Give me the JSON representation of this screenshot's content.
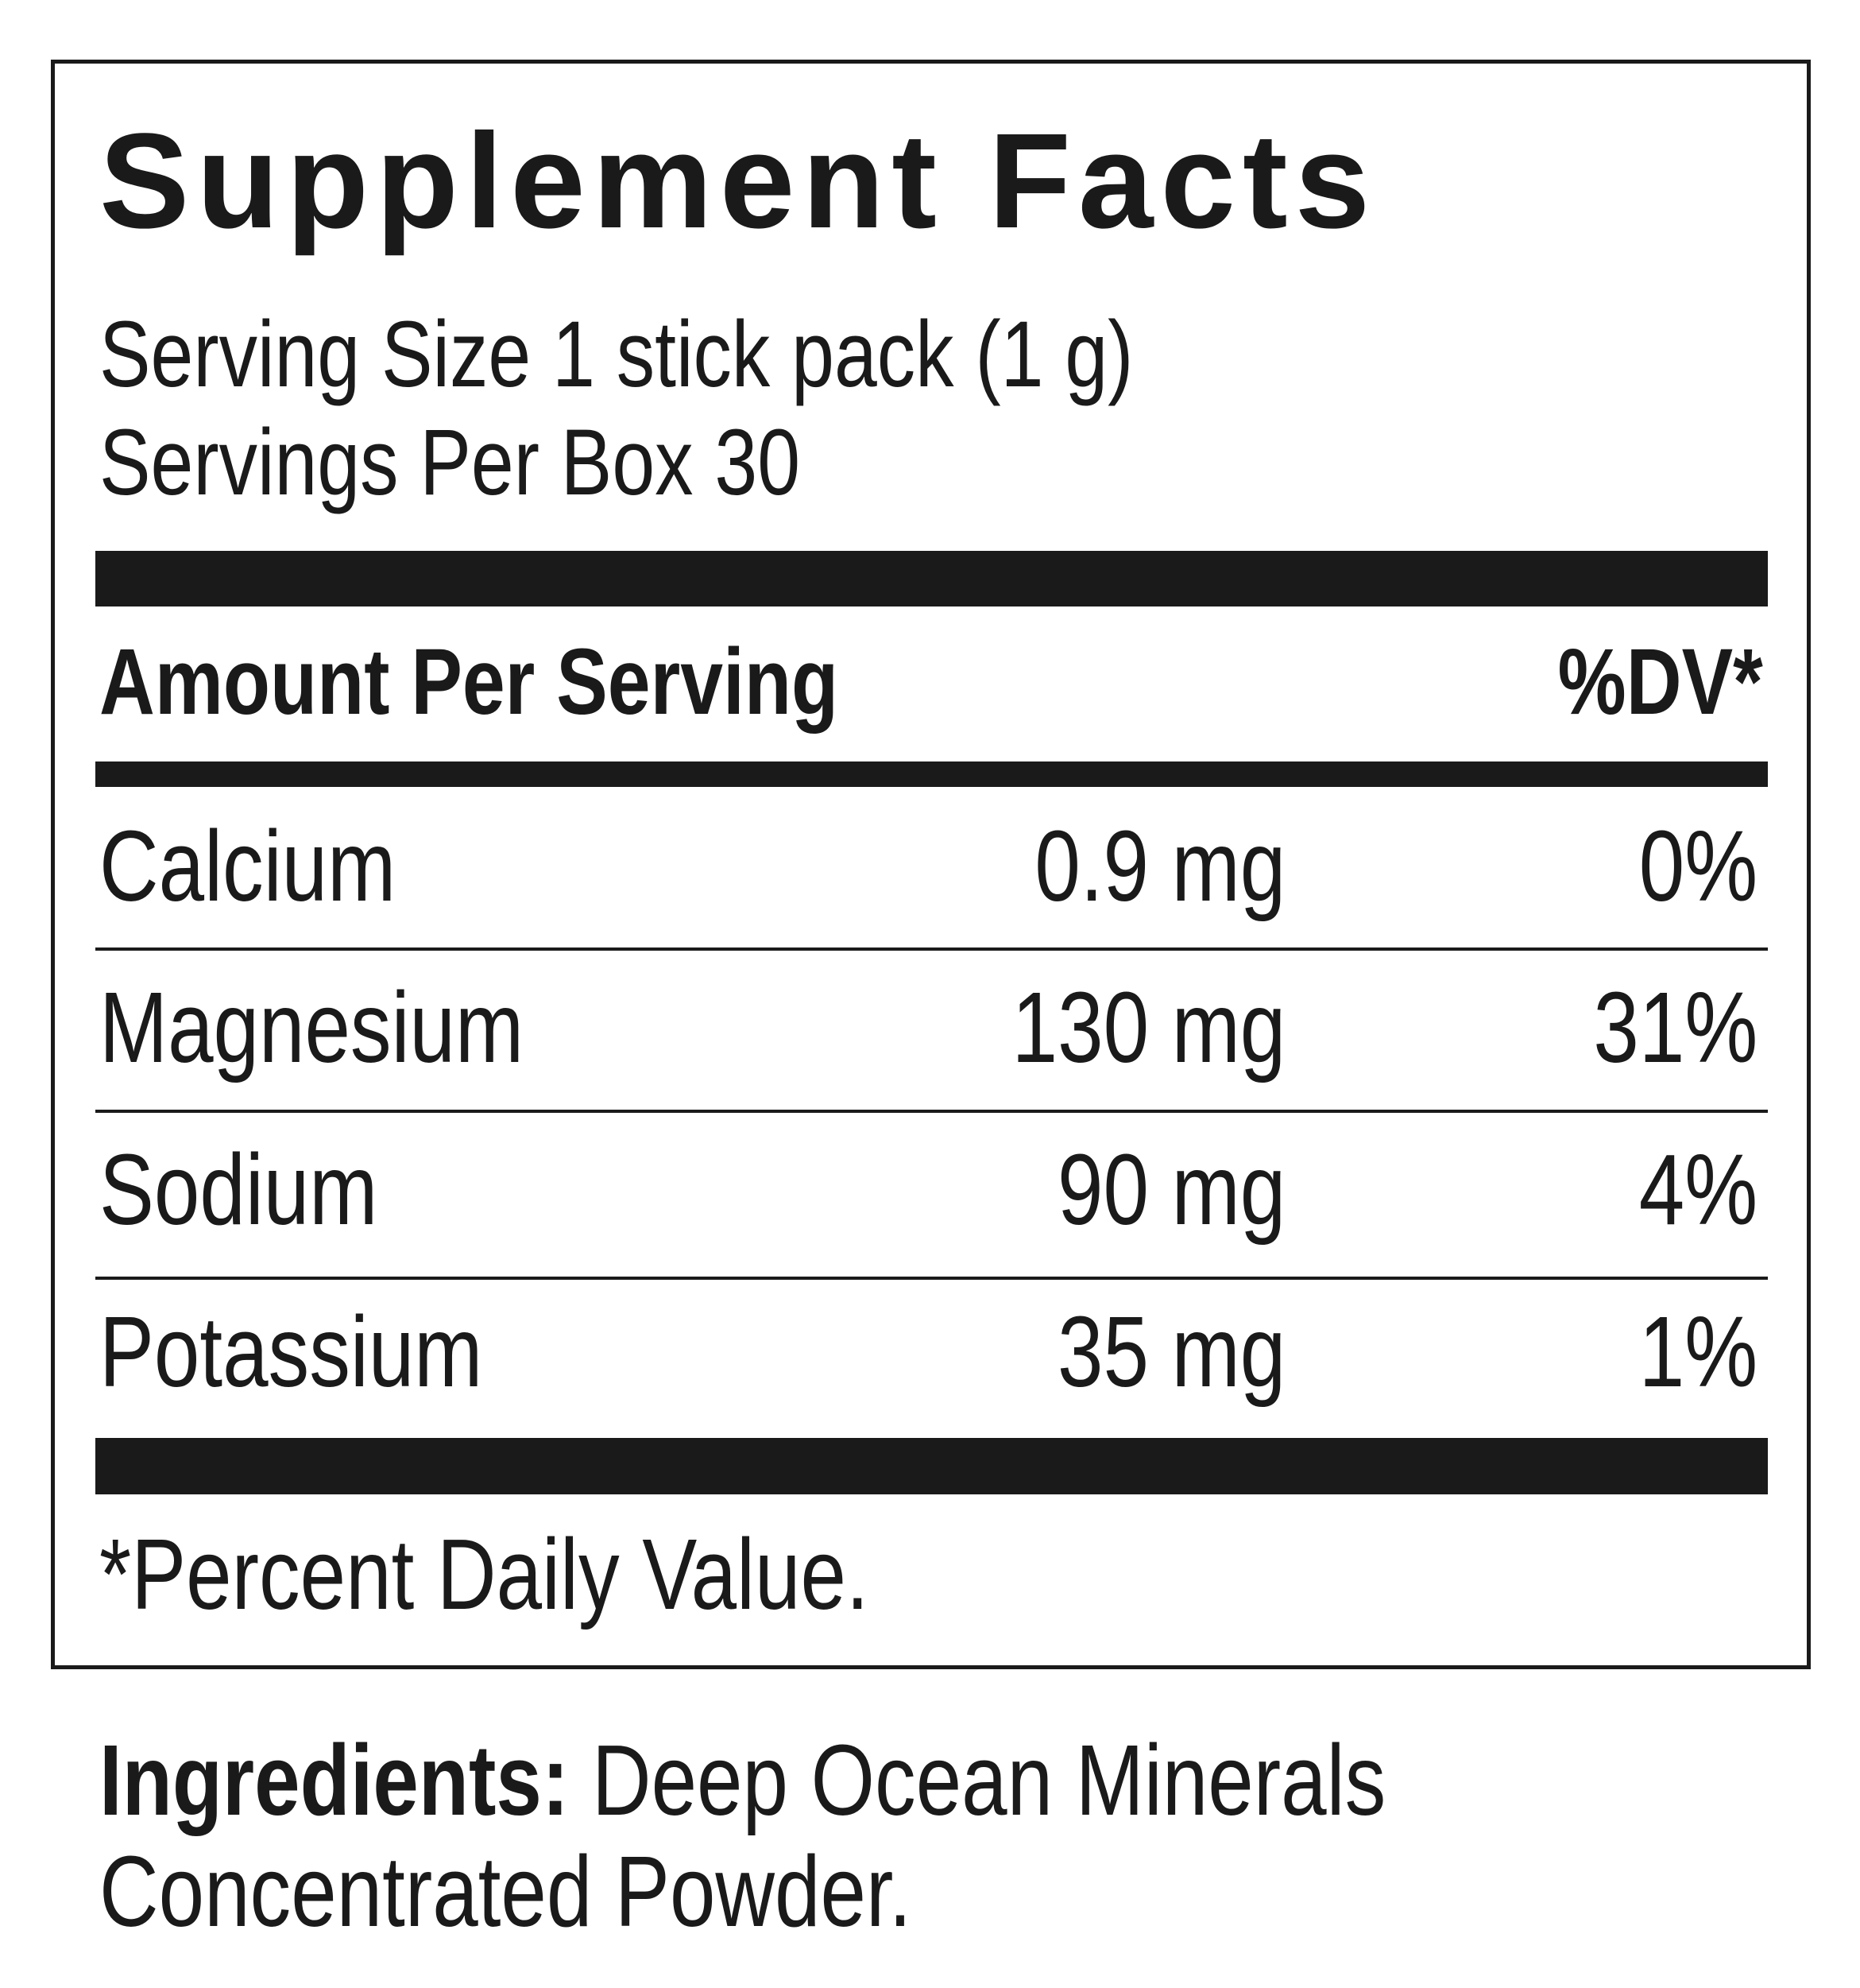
{
  "title": "Supplement Facts",
  "serving_size": "Serving Size 1 stick pack (1 g)",
  "servings_per_container": "Servings Per Box 30",
  "header": {
    "amount_label": "Amount Per Serving",
    "dv_label": "%DV*"
  },
  "rows": [
    {
      "name": "Calcium",
      "amount": "0.9 mg",
      "dv": "0%"
    },
    {
      "name": "Magnesium",
      "amount": "130 mg",
      "dv": "31%"
    },
    {
      "name": "Sodium",
      "amount": "90 mg",
      "dv": "4%"
    },
    {
      "name": "Potassium",
      "amount": "35 mg",
      "dv": "1%"
    }
  ],
  "footnote": "*Percent Daily Value.",
  "ingredients": {
    "label": "Ingredients:",
    "line1": " Deep Ocean Minerals",
    "line2": "Concentrated Powder."
  },
  "colors": {
    "ink": "#1a1a1a",
    "background": "#ffffff"
  }
}
